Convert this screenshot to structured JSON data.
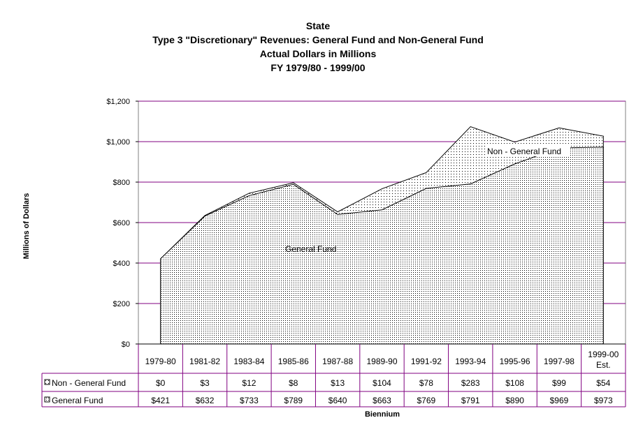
{
  "chart_data": {
    "type": "area",
    "stacked": true,
    "title_lines": [
      "State",
      "Type 3 \"Discretionary\" Revenues: General Fund and Non-General Fund",
      "Actual Dollars in Millions",
      "FY 1979/80 - 1999/00"
    ],
    "xlabel": "Biennium",
    "ylabel": "Millions of Dollars",
    "ylim": [
      0,
      1200
    ],
    "yticks": [
      "$0",
      "$200",
      "$400",
      "$600",
      "$800",
      "$1,000",
      "$1,200"
    ],
    "ytick_values": [
      0,
      200,
      400,
      600,
      800,
      1000,
      1200
    ],
    "grid": true,
    "categories": [
      "1979-80",
      "1981-82",
      "1983-84",
      "1985-86",
      "1987-88",
      "1989-90",
      "1991-92",
      "1993-94",
      "1995-96",
      "1997-98",
      "1999-00 Est."
    ],
    "series": [
      {
        "name": "General Fund",
        "values": [
          421,
          632,
          733,
          789,
          640,
          663,
          769,
          791,
          890,
          969,
          973
        ],
        "labels": [
          "$421",
          "$632",
          "$733",
          "$789",
          "$640",
          "$663",
          "$769",
          "$791",
          "$890",
          "$969",
          "$973"
        ]
      },
      {
        "name": "Non - General Fund",
        "values": [
          0,
          3,
          12,
          8,
          13,
          104,
          78,
          283,
          108,
          99,
          54
        ],
        "labels": [
          "$0",
          "$3",
          "$12",
          "$8",
          "$13",
          "$104",
          "$78",
          "$283",
          "$108",
          "$99",
          "$54"
        ]
      }
    ],
    "annotations": [
      "General Fund",
      "Non - General Fund"
    ],
    "colors": {
      "grid": "#800080",
      "fill_pattern": "#000000",
      "background": "#ffffff"
    }
  }
}
